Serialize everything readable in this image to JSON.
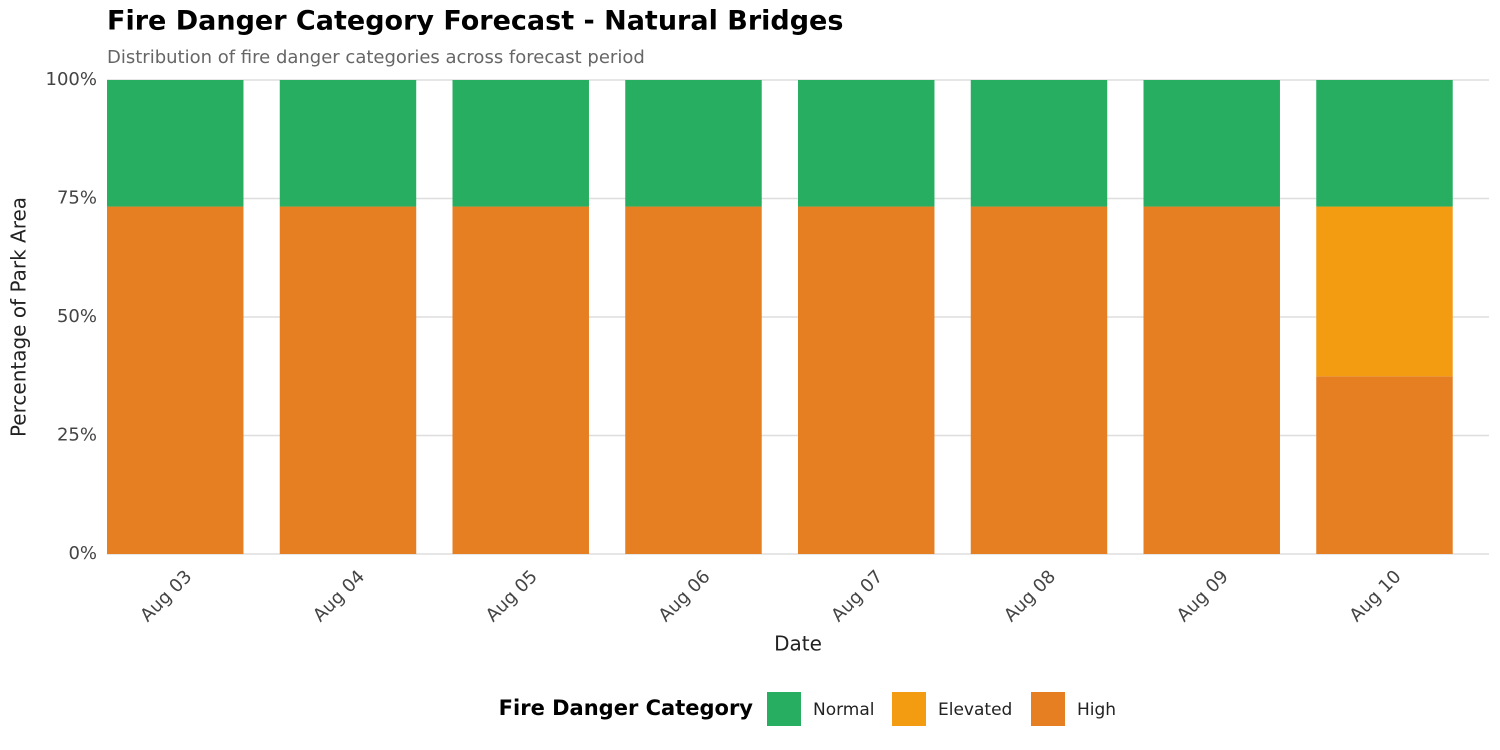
{
  "chart_data": {
    "type": "stacked_bar",
    "title": "Fire Danger Category Forecast - Natural Bridges",
    "subtitle": "Distribution of fire danger categories across forecast period",
    "x_label": "Date",
    "y_label": "Percentage of Park Area",
    "legend_title": "Fire Danger Category",
    "legend_position": "bottom",
    "categories": [
      "Aug 03",
      "Aug 04",
      "Aug 05",
      "Aug 06",
      "Aug 07",
      "Aug 08",
      "Aug 09",
      "Aug 10"
    ],
    "series": [
      {
        "name": "Normal",
        "color": "#27ae60",
        "values": [
          26.7,
          26.7,
          26.7,
          26.7,
          26.7,
          26.7,
          26.7,
          26.7
        ]
      },
      {
        "name": "Elevated",
        "color": "#f39c12",
        "values": [
          0,
          0,
          0,
          0,
          0,
          0,
          0,
          35.8
        ]
      },
      {
        "name": "High",
        "color": "#e67e22",
        "values": [
          73.3,
          73.3,
          73.3,
          73.3,
          73.3,
          73.3,
          73.3,
          37.5
        ]
      }
    ],
    "ylim": [
      0,
      100
    ],
    "yticks": [
      {
        "value": 0,
        "label": "0%"
      },
      {
        "value": 25,
        "label": "25%"
      },
      {
        "value": 50,
        "label": "50%"
      },
      {
        "value": 75,
        "label": "75%"
      },
      {
        "value": 100,
        "label": "100%"
      }
    ],
    "grid": true
  }
}
